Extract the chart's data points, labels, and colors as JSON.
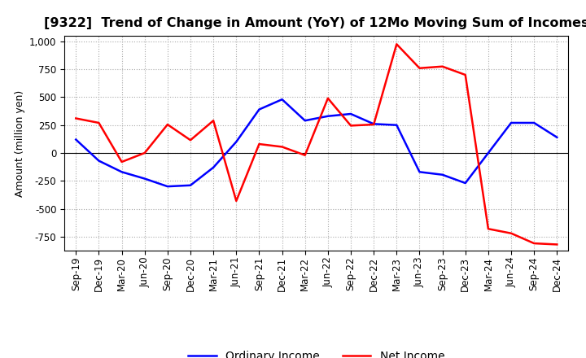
{
  "title": "[9322]  Trend of Change in Amount (YoY) of 12Mo Moving Sum of Incomes",
  "ylabel": "Amount (million yen)",
  "x_labels": [
    "Sep-19",
    "Dec-19",
    "Mar-20",
    "Jun-20",
    "Sep-20",
    "Dec-20",
    "Mar-21",
    "Jun-21",
    "Sep-21",
    "Dec-21",
    "Mar-22",
    "Jun-22",
    "Sep-22",
    "Dec-22",
    "Mar-23",
    "Jun-23",
    "Sep-23",
    "Dec-23",
    "Mar-24",
    "Jun-24",
    "Sep-24",
    "Dec-24"
  ],
  "ordinary_income": [
    120,
    -70,
    -170,
    -230,
    -300,
    -290,
    -130,
    100,
    390,
    480,
    290,
    330,
    350,
    260,
    250,
    -170,
    -195,
    -270,
    0,
    270,
    270,
    140
  ],
  "net_income": [
    310,
    270,
    -80,
    0,
    255,
    115,
    290,
    -430,
    80,
    55,
    -20,
    490,
    245,
    255,
    975,
    760,
    775,
    700,
    -680,
    -720,
    -810,
    -820
  ],
  "ordinary_color": "#0000ff",
  "net_color": "#ff0000",
  "ylim": [
    -875,
    1050
  ],
  "yticks": [
    -750,
    -500,
    -250,
    0,
    250,
    500,
    750,
    1000
  ],
  "background_color": "#ffffff",
  "grid_color": "#aaaaaa",
  "title_fontsize": 11.5,
  "legend_fontsize": 10,
  "ylabel_fontsize": 9,
  "tick_fontsize": 8.5
}
